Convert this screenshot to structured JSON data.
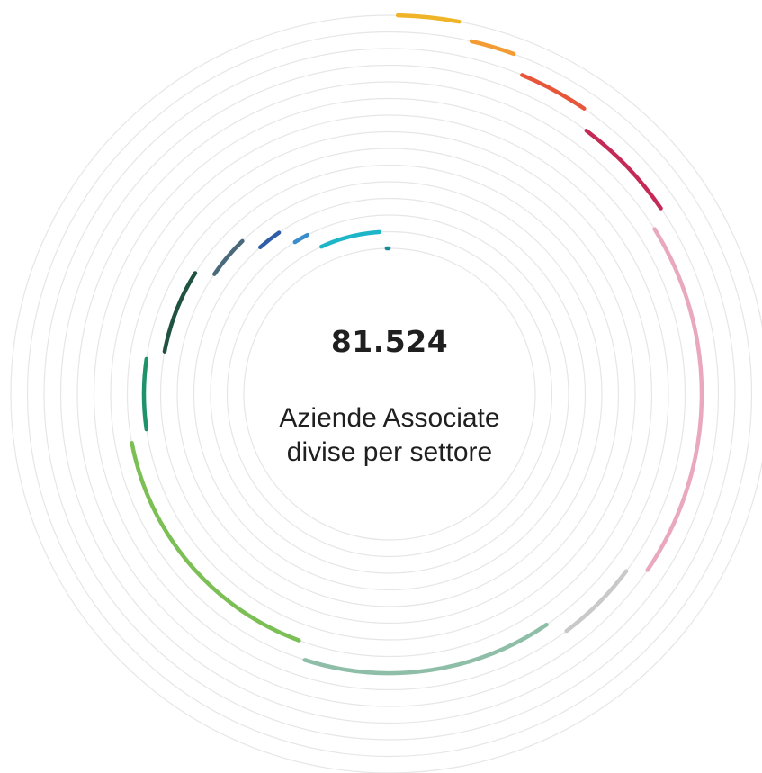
{
  "center": {
    "total": "81.524",
    "caption_line1": "Aziende Associate",
    "caption_line2": "divise per settore"
  },
  "chart_data": {
    "type": "radial_bar",
    "title": "",
    "grid": true,
    "series": [
      {
        "value": 2.5,
        "color": "#F0B429"
      },
      {
        "value": 2.0,
        "color": "#F39C34"
      },
      {
        "value": 3.0,
        "color": "#E8563A"
      },
      {
        "value": 4.5,
        "color": "#C42A55"
      },
      {
        "value": 14.5,
        "color": "#E9A8BE"
      },
      {
        "value": 4.0,
        "color": "#C9C9C9"
      },
      {
        "value": 11.5,
        "color": "#8EBEA8"
      },
      {
        "value": 13.0,
        "color": "#7BBF55"
      },
      {
        "value": 4.0,
        "color": "#1E9268"
      },
      {
        "value": 5.0,
        "color": "#1F5240"
      },
      {
        "value": 3.0,
        "color": "#4A6A7C"
      },
      {
        "value": 2.0,
        "color": "#2F5DA8"
      },
      {
        "value": 1.5,
        "color": "#3A8CCB"
      },
      {
        "value": 5.0,
        "color": "#1DB5C8"
      },
      {
        "value": 0.5,
        "color": "#1A8A9A"
      }
    ]
  }
}
